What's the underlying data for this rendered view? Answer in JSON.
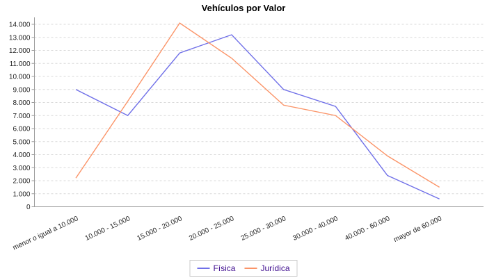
{
  "chart_data": {
    "type": "line",
    "title": "Vehículos por Valor",
    "categories": [
      "menor o igual a 10.000",
      "10.000 - 15.000",
      "15.000 - 20.000",
      "20.000 - 25.000",
      "25.000 - 30.000",
      "30.000 - 40.000",
      "40.000 - 60.000",
      "mayor de 60.000"
    ],
    "series": [
      {
        "name": "Física",
        "color": "#7070e8",
        "values": [
          9000,
          7000,
          11800,
          13200,
          9000,
          7700,
          2400,
          600
        ]
      },
      {
        "name": "Jurídica",
        "color": "#fb9468",
        "values": [
          2200,
          8100,
          14100,
          11400,
          7800,
          7000,
          3900,
          1500
        ]
      }
    ],
    "ylim": [
      0,
      14000
    ],
    "y_tick_step": 1000,
    "y_tick_labels": [
      "0",
      "1.000",
      "2.000",
      "3.000",
      "4.000",
      "5.000",
      "6.000",
      "7.000",
      "8.000",
      "9.000",
      "10.000",
      "11.000",
      "12.000",
      "13.000",
      "14.000"
    ],
    "grid": "horizontal-dashed",
    "legend_position": "bottom",
    "x_label_rotation_deg": -25,
    "colors": {
      "grid": "#d9d9d9",
      "axis": "#9b9b9b",
      "tick_label": "#222222",
      "title": "#000000",
      "legend_text": "#3f0d8f",
      "legend_border": "#cccccc",
      "background": "#ffffff"
    }
  }
}
